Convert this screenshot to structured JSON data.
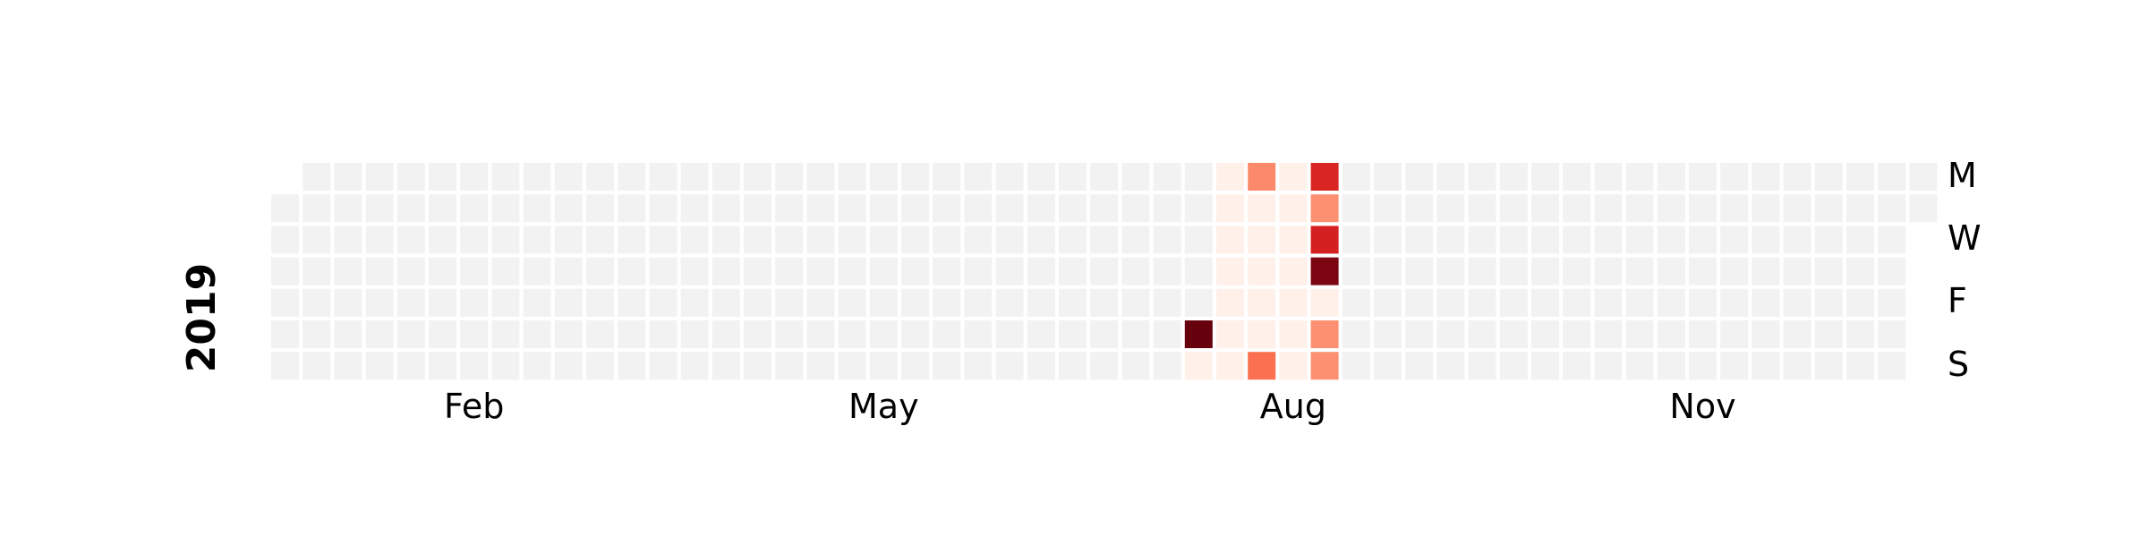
{
  "chart_data": {
    "type": "heatmap",
    "title": "",
    "year": "2019",
    "xlabel": "",
    "ylabel": "",
    "grid": false,
    "legend": "none",
    "colormap": "Reds",
    "empty_color": "#f2f2f2",
    "month_labels": [
      "Feb",
      "May",
      "Aug",
      "Nov"
    ],
    "day_labels": [
      "M",
      "W",
      "F",
      "S"
    ],
    "value_range": [
      0,
      10
    ],
    "active_range": [
      "2019-07-27",
      "2019-08-18"
    ],
    "values": [
      {
        "date": "2019-07-27",
        "value": 10
      },
      {
        "date": "2019-07-28",
        "value": 0.3
      },
      {
        "date": "2019-07-29",
        "value": 0.3
      },
      {
        "date": "2019-07-30",
        "value": 0.3
      },
      {
        "date": "2019-07-31",
        "value": 0.3
      },
      {
        "date": "2019-08-01",
        "value": 0.3
      },
      {
        "date": "2019-08-02",
        "value": 0.3
      },
      {
        "date": "2019-08-03",
        "value": 0.3
      },
      {
        "date": "2019-08-04",
        "value": 0.3
      },
      {
        "date": "2019-08-05",
        "value": 4
      },
      {
        "date": "2019-08-06",
        "value": 0.3
      },
      {
        "date": "2019-08-07",
        "value": 0.3
      },
      {
        "date": "2019-08-08",
        "value": 0.3
      },
      {
        "date": "2019-08-09",
        "value": 0.3
      },
      {
        "date": "2019-08-10",
        "value": 0.3
      },
      {
        "date": "2019-08-11",
        "value": 4.8
      },
      {
        "date": "2019-08-12",
        "value": 0.3
      },
      {
        "date": "2019-08-13",
        "value": 0.3
      },
      {
        "date": "2019-08-14",
        "value": 0.3
      },
      {
        "date": "2019-08-15",
        "value": 0.3
      },
      {
        "date": "2019-08-16",
        "value": 0.3
      },
      {
        "date": "2019-08-17",
        "value": 0.3
      },
      {
        "date": "2019-08-18",
        "value": 0.3
      },
      {
        "date": "2019-08-19",
        "value": 7
      },
      {
        "date": "2019-08-20",
        "value": 3.8
      },
      {
        "date": "2019-08-21",
        "value": 7.2
      },
      {
        "date": "2019-08-22",
        "value": 9.6
      },
      {
        "date": "2019-08-23",
        "value": 0.3
      },
      {
        "date": "2019-08-24",
        "value": 3.8
      },
      {
        "date": "2019-08-25",
        "value": 3.8
      }
    ]
  }
}
